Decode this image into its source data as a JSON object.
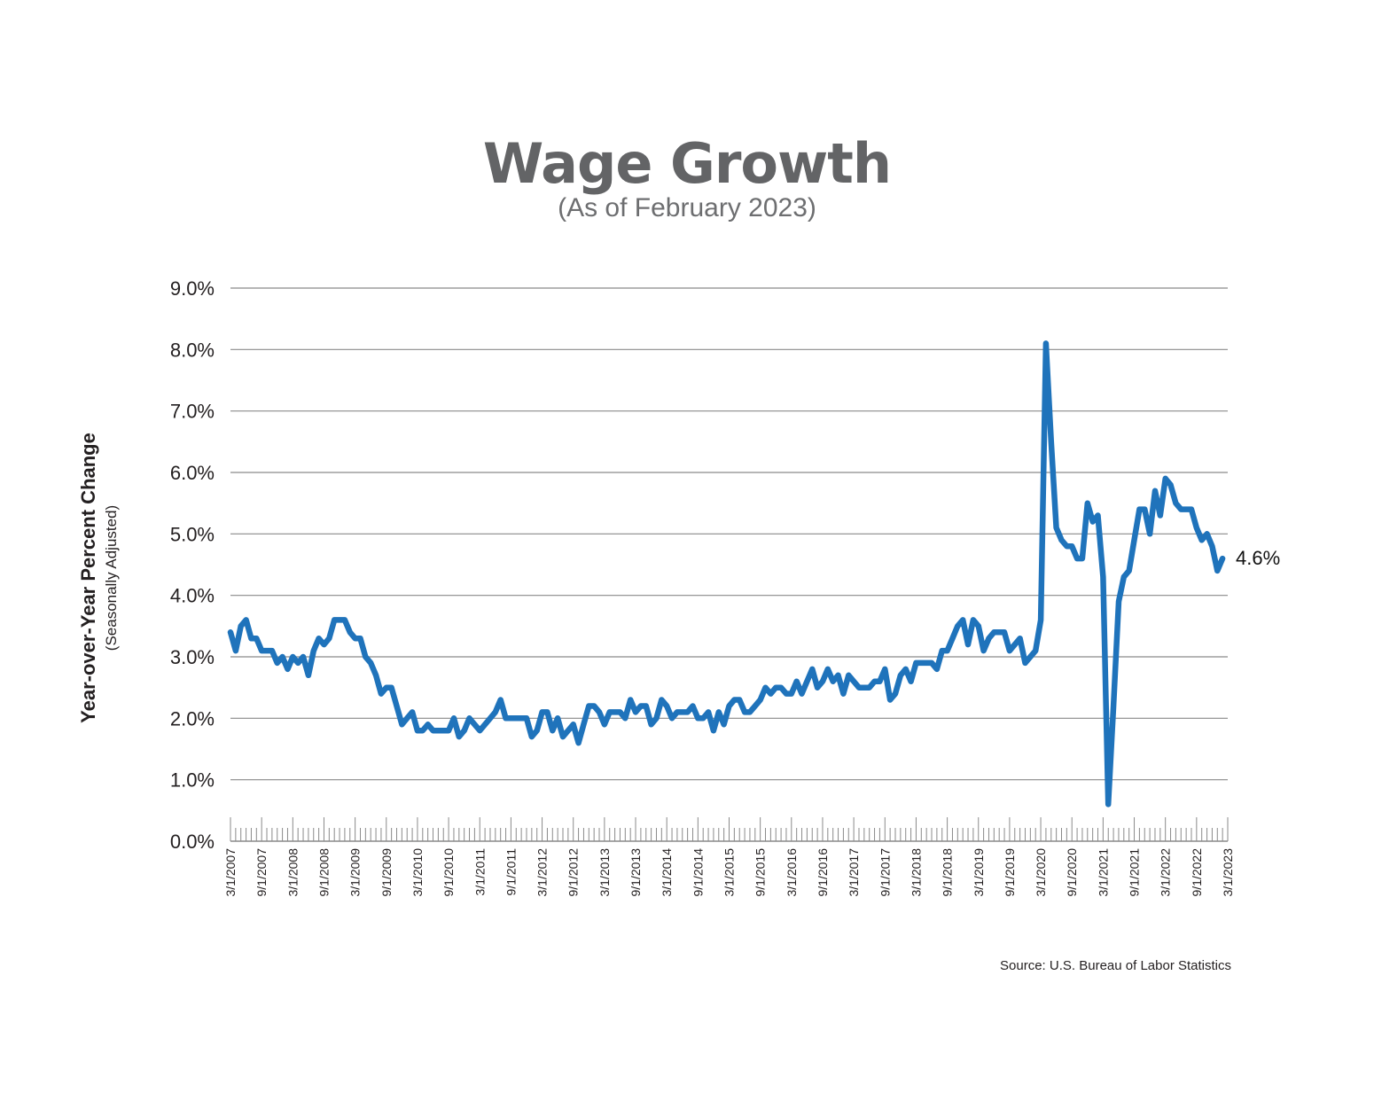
{
  "chart_data": {
    "type": "line",
    "title": "Wage Growth",
    "subtitle": "(As of February 2023)",
    "ylabel": "Year-over-Year Percent Change",
    "ylabel_sub": "(Seasonally Adjusted)",
    "xlabel": "",
    "ylim": [
      0,
      9
    ],
    "yticks": [
      "0.0%",
      "1.0%",
      "2.0%",
      "3.0%",
      "4.0%",
      "5.0%",
      "6.0%",
      "7.0%",
      "8.0%",
      "9.0%"
    ],
    "xticks": [
      "3/1/2007",
      "9/1/2007",
      "3/1/2008",
      "9/1/2008",
      "3/1/2009",
      "9/1/2009",
      "3/1/2010",
      "9/1/2010",
      "3/1/2011",
      "9/1/2011",
      "3/1/2012",
      "9/1/2012",
      "3/1/2013",
      "9/1/2013",
      "3/1/2014",
      "9/1/2014",
      "3/1/2015",
      "9/1/2015",
      "3/1/2016",
      "9/1/2016",
      "3/1/2017",
      "9/1/2017",
      "3/1/2018",
      "9/1/2018",
      "3/1/2019",
      "9/1/2019",
      "3/1/2020",
      "9/1/2020",
      "3/1/2021",
      "9/1/2021",
      "3/1/2022",
      "9/1/2022",
      "3/1/2023"
    ],
    "xlim": [
      "3/1/2007",
      "3/1/2023"
    ],
    "grid": true,
    "line_color": "#1f73bb",
    "annotation": "4.6%",
    "source": "Source: U.S. Bureau of Labor Statistics",
    "series": [
      {
        "x": [
          "2007-03",
          "2007-04",
          "2007-05",
          "2007-06",
          "2007-07",
          "2007-08",
          "2007-09",
          "2007-10",
          "2007-11",
          "2007-12",
          "2008-01",
          "2008-02",
          "2008-03",
          "2008-04",
          "2008-05",
          "2008-06",
          "2008-07",
          "2008-08",
          "2008-09",
          "2008-10",
          "2008-11",
          "2008-12",
          "2009-01",
          "2009-02",
          "2009-03",
          "2009-04",
          "2009-05",
          "2009-06",
          "2009-07",
          "2009-08",
          "2009-09",
          "2009-10",
          "2009-11",
          "2009-12",
          "2010-01",
          "2010-02",
          "2010-03",
          "2010-04",
          "2010-05",
          "2010-06",
          "2010-07",
          "2010-08",
          "2010-09",
          "2010-10",
          "2010-11",
          "2010-12",
          "2011-01",
          "2011-02",
          "2011-03",
          "2011-04",
          "2011-05",
          "2011-06",
          "2011-07",
          "2011-08",
          "2011-09",
          "2011-10",
          "2011-11",
          "2011-12",
          "2012-01",
          "2012-02",
          "2012-03",
          "2012-04",
          "2012-05",
          "2012-06",
          "2012-07",
          "2012-08",
          "2012-09",
          "2012-10",
          "2012-11",
          "2012-12",
          "2013-01",
          "2013-02",
          "2013-03",
          "2013-04",
          "2013-05",
          "2013-06",
          "2013-07",
          "2013-08",
          "2013-09",
          "2013-10",
          "2013-11",
          "2013-12",
          "2014-01",
          "2014-02",
          "2014-03",
          "2014-04",
          "2014-05",
          "2014-06",
          "2014-07",
          "2014-08",
          "2014-09",
          "2014-10",
          "2014-11",
          "2014-12",
          "2015-01",
          "2015-02",
          "2015-03",
          "2015-04",
          "2015-05",
          "2015-06",
          "2015-07",
          "2015-08",
          "2015-09",
          "2015-10",
          "2015-11",
          "2015-12",
          "2016-01",
          "2016-02",
          "2016-03",
          "2016-04",
          "2016-05",
          "2016-06",
          "2016-07",
          "2016-08",
          "2016-09",
          "2016-10",
          "2016-11",
          "2016-12",
          "2017-01",
          "2017-02",
          "2017-03",
          "2017-04",
          "2017-05",
          "2017-06",
          "2017-07",
          "2017-08",
          "2017-09",
          "2017-10",
          "2017-11",
          "2017-12",
          "2018-01",
          "2018-02",
          "2018-03",
          "2018-04",
          "2018-05",
          "2018-06",
          "2018-07",
          "2018-08",
          "2018-09",
          "2018-10",
          "2018-11",
          "2018-12",
          "2019-01",
          "2019-02",
          "2019-03",
          "2019-04",
          "2019-05",
          "2019-06",
          "2019-07",
          "2019-08",
          "2019-09",
          "2019-10",
          "2019-11",
          "2019-12",
          "2020-01",
          "2020-02",
          "2020-03",
          "2020-04",
          "2020-05",
          "2020-06",
          "2020-07",
          "2020-08",
          "2020-09",
          "2020-10",
          "2020-11",
          "2020-12",
          "2021-01",
          "2021-02",
          "2021-03",
          "2021-04",
          "2021-05",
          "2021-06",
          "2021-07",
          "2021-08",
          "2021-09",
          "2021-10",
          "2021-11",
          "2021-12",
          "2022-01",
          "2022-02",
          "2022-03",
          "2022-04",
          "2022-05",
          "2022-06",
          "2022-07",
          "2022-08",
          "2022-09",
          "2022-10",
          "2022-11",
          "2022-12",
          "2023-01",
          "2023-02"
        ],
        "values": [
          3.4,
          3.1,
          3.5,
          3.6,
          3.3,
          3.3,
          3.1,
          3.1,
          3.1,
          2.9,
          3.0,
          2.8,
          3.0,
          2.9,
          3.0,
          2.7,
          3.1,
          3.3,
          3.2,
          3.3,
          3.6,
          3.6,
          3.6,
          3.4,
          3.3,
          3.3,
          3.0,
          2.9,
          2.7,
          2.4,
          2.5,
          2.5,
          2.2,
          1.9,
          2.0,
          2.1,
          1.8,
          1.8,
          1.9,
          1.8,
          1.8,
          1.8,
          1.8,
          2.0,
          1.7,
          1.8,
          2.0,
          1.9,
          1.8,
          1.9,
          2.0,
          2.1,
          2.3,
          2.0,
          2.0,
          2.0,
          2.0,
          2.0,
          1.7,
          1.8,
          2.1,
          2.1,
          1.8,
          2.0,
          1.7,
          1.8,
          1.9,
          1.6,
          1.9,
          2.2,
          2.2,
          2.1,
          1.9,
          2.1,
          2.1,
          2.1,
          2.0,
          2.3,
          2.1,
          2.2,
          2.2,
          1.9,
          2.0,
          2.3,
          2.2,
          2.0,
          2.1,
          2.1,
          2.1,
          2.2,
          2.0,
          2.0,
          2.1,
          1.8,
          2.1,
          1.9,
          2.2,
          2.3,
          2.3,
          2.1,
          2.1,
          2.2,
          2.3,
          2.5,
          2.4,
          2.5,
          2.5,
          2.4,
          2.4,
          2.6,
          2.4,
          2.6,
          2.8,
          2.5,
          2.6,
          2.8,
          2.6,
          2.7,
          2.4,
          2.7,
          2.6,
          2.5,
          2.5,
          2.5,
          2.6,
          2.6,
          2.8,
          2.3,
          2.4,
          2.7,
          2.8,
          2.6,
          2.9,
          2.9,
          2.9,
          2.9,
          2.8,
          3.1,
          3.1,
          3.3,
          3.5,
          3.6,
          3.2,
          3.6,
          3.5,
          3.1,
          3.3,
          3.4,
          3.4,
          3.4,
          3.1,
          3.2,
          3.3,
          2.9,
          3.0,
          3.1,
          3.6,
          8.1,
          6.5,
          5.1,
          4.9,
          4.8,
          4.8,
          4.6,
          4.6,
          5.5,
          5.2,
          5.3,
          4.3,
          0.6,
          2.2,
          3.9,
          4.3,
          4.4,
          4.9,
          5.4,
          5.4,
          5.0,
          5.7,
          5.3,
          5.9,
          5.8,
          5.5,
          5.4,
          5.4,
          5.4,
          5.1,
          4.9,
          5.0,
          4.8,
          4.4,
          4.6
        ]
      }
    ]
  }
}
